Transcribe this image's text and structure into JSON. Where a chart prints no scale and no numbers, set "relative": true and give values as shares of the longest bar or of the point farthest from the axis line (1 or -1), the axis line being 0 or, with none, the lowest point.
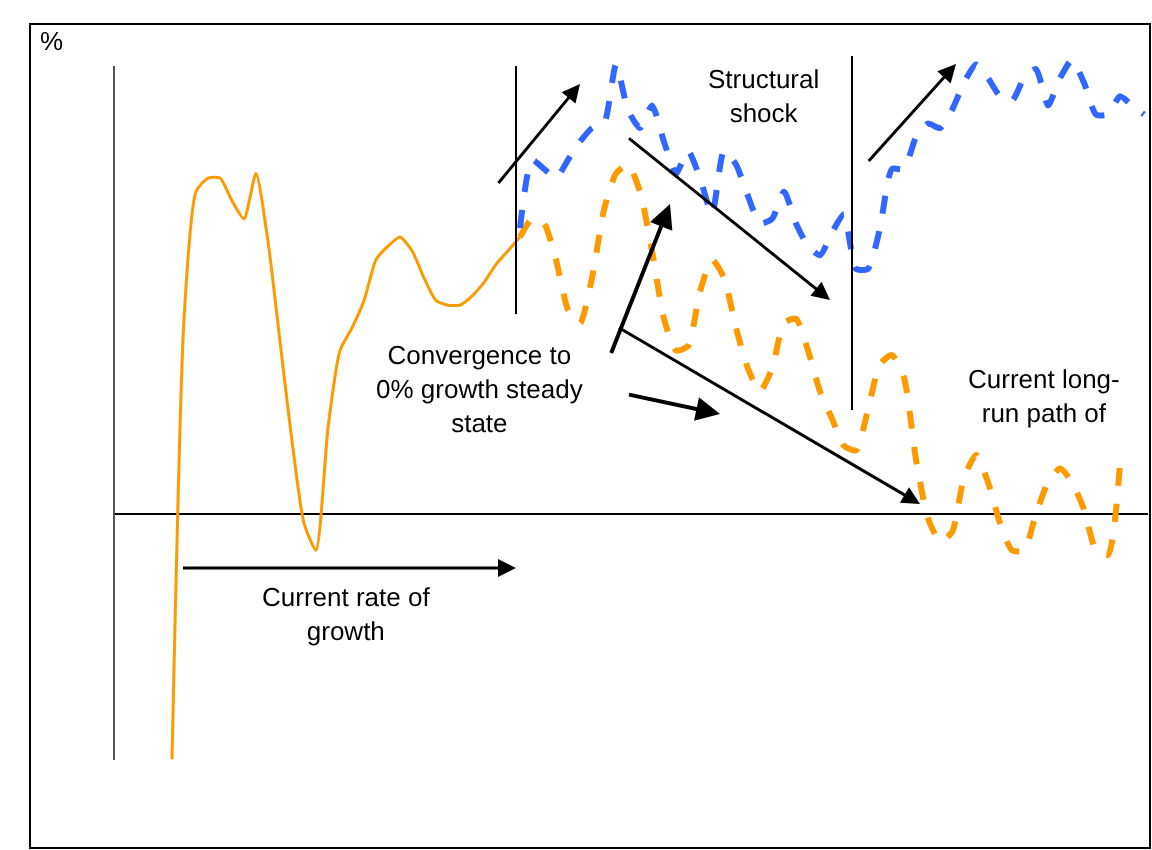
{
  "chart_data": {
    "type": "line",
    "relative": true,
    "categories": [
      null,
      null,
      null,
      null,
      null,
      null,
      null,
      null,
      null,
      null,
      null,
      null,
      null,
      null,
      null,
      null,
      null,
      null,
      null,
      null,
      null,
      null,
      null,
      null,
      null,
      null,
      null,
      null,
      null,
      null,
      null,
      null,
      null,
      null,
      null,
      null,
      null,
      null,
      null,
      null,
      null,
      null,
      null,
      null,
      null,
      null,
      null,
      null,
      null,
      null,
      null,
      null,
      null,
      null,
      null,
      null,
      null,
      null,
      null,
      null,
      null,
      null,
      null,
      null,
      null,
      null,
      null,
      null,
      null,
      null,
      null,
      null,
      null,
      null,
      null,
      null,
      null,
      null,
      null,
      null,
      null,
      null
    ],
    "series": [
      {
        "color": "#ff9900",
        "line_style": "solid",
        "values": [
          -0.54,
          0.43,
          0.71,
          0.74,
          0.74,
          0.69,
          0.65,
          0.75,
          0.6,
          0.38,
          0.16,
          -0.02,
          -0.08,
          0.19,
          0.36,
          0.41,
          0.47,
          0.56,
          0.59,
          0.61,
          0.58,
          0.52,
          0.47,
          0.46,
          0.46,
          0.48,
          0.51,
          0.55,
          0.58,
          0.61,
          null,
          null,
          null,
          null,
          null,
          null,
          null,
          null,
          null,
          null,
          null,
          null,
          null,
          null,
          null,
          null,
          null,
          null,
          null,
          null,
          null,
          null,
          null,
          null,
          null,
          null,
          null,
          null,
          null,
          null,
          null,
          null,
          null,
          null,
          null,
          null,
          null,
          null,
          null,
          null,
          null,
          null,
          null,
          null,
          null,
          null,
          null,
          null,
          null,
          null,
          null,
          null
        ]
      },
      {
        "color": "#ff9900",
        "line_style": "dashed",
        "values": [
          null,
          null,
          null,
          null,
          null,
          null,
          null,
          null,
          null,
          null,
          null,
          null,
          null,
          null,
          null,
          null,
          null,
          null,
          null,
          null,
          null,
          null,
          null,
          null,
          null,
          null,
          null,
          null,
          null,
          0.61,
          0.65,
          0.64,
          0.56,
          0.45,
          0.42,
          0.52,
          0.67,
          0.75,
          0.77,
          0.71,
          0.58,
          0.43,
          0.36,
          0.37,
          0.49,
          0.56,
          0.52,
          0.41,
          0.32,
          0.27,
          0.32,
          0.42,
          0.43,
          0.36,
          0.27,
          0.21,
          0.15,
          0.14,
          0.23,
          0.33,
          0.35,
          0.3,
          0.12,
          -0.01,
          -0.06,
          -0.04,
          0.08,
          0.13,
          0.07,
          -0.02,
          -0.08,
          -0.08,
          0.0,
          0.07,
          0.1,
          0.07,
          0.01,
          -0.08,
          -0.09,
          0.11,
          null,
          null
        ]
      },
      {
        "color": "#3366ff",
        "line_style": "dashed",
        "values": [
          null,
          null,
          null,
          null,
          null,
          null,
          null,
          null,
          null,
          null,
          null,
          null,
          null,
          null,
          null,
          null,
          null,
          null,
          null,
          null,
          null,
          null,
          null,
          null,
          null,
          null,
          null,
          null,
          null,
          0.63,
          0.78,
          0.76,
          0.74,
          0.78,
          0.82,
          0.85,
          0.86,
          0.99,
          0.89,
          0.85,
          0.9,
          0.82,
          0.75,
          0.8,
          0.74,
          0.66,
          0.8,
          0.77,
          0.7,
          0.64,
          0.65,
          0.71,
          0.64,
          0.59,
          0.57,
          0.62,
          0.66,
          0.54,
          0.54,
          0.63,
          0.76,
          0.76,
          0.83,
          0.86,
          0.85,
          0.89,
          0.95,
          0.99,
          0.96,
          0.92,
          0.91,
          0.96,
          0.98,
          0.9,
          0.96,
          1,
          0.95,
          0.88,
          0.88,
          0.92,
          0.9,
          0.88
        ]
      }
    ],
    "annotations": [
      "%",
      "Structural shock",
      "Convergence to 0% growth steady state",
      "Current long-run path of",
      "Current rate of growth"
    ]
  }
}
